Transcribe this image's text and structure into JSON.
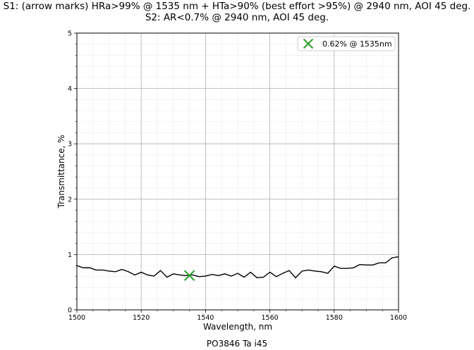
{
  "title_line1": "S1: (arrow marks) HRa>99% @ 1535 nm + HTa>90% (best effort >95%) @ 2940 nm, AOI 45 deg.",
  "title_line2": "S2: AR<0.7% @ 2940 nm, AOI 45 deg.",
  "footer": "PO3846 Ta i45",
  "colors": {
    "line": "#000000",
    "marker": "#2ca02c",
    "grid_major": "#b0b0b0",
    "grid_minor": "#d8d8d8"
  },
  "chart_data": {
    "type": "line",
    "title": "",
    "xlabel": "Wavelength, nm",
    "ylabel": "Transmittance, %",
    "xlim": [
      1500,
      1600
    ],
    "ylim": [
      0,
      5
    ],
    "xticks": [
      "1500",
      "1520",
      "1540",
      "1560",
      "1580",
      "1600"
    ],
    "yticks": [
      "0",
      "1",
      "2",
      "3",
      "4",
      "5"
    ],
    "grid": true,
    "minor_grid": true,
    "legend_position": "top-right",
    "series": [
      {
        "x": [
          1500,
          1502,
          1504,
          1506,
          1508,
          1510,
          1512,
          1514,
          1516,
          1518,
          1520,
          1522,
          1524,
          1526,
          1528,
          1530,
          1532,
          1534,
          1536,
          1538,
          1540,
          1542,
          1544,
          1546,
          1548,
          1550,
          1552,
          1554,
          1556,
          1558,
          1560,
          1562,
          1564,
          1566,
          1568,
          1570,
          1572,
          1574,
          1576,
          1578,
          1580,
          1582,
          1584,
          1586,
          1588,
          1590,
          1592,
          1594,
          1596,
          1598,
          1600
        ],
        "y": [
          0.8,
          0.76,
          0.76,
          0.72,
          0.72,
          0.7,
          0.69,
          0.73,
          0.69,
          0.63,
          0.68,
          0.63,
          0.61,
          0.71,
          0.59,
          0.65,
          0.63,
          0.62,
          0.63,
          0.6,
          0.61,
          0.64,
          0.62,
          0.65,
          0.61,
          0.66,
          0.59,
          0.68,
          0.58,
          0.59,
          0.68,
          0.6,
          0.66,
          0.71,
          0.58,
          0.7,
          0.72,
          0.7,
          0.69,
          0.66,
          0.79,
          0.75,
          0.75,
          0.76,
          0.82,
          0.81,
          0.81,
          0.85,
          0.85,
          0.94,
          0.96
        ]
      }
    ],
    "marker": {
      "x": 1535,
      "y": 0.62,
      "label": "0.62% @ 1535nm"
    }
  }
}
